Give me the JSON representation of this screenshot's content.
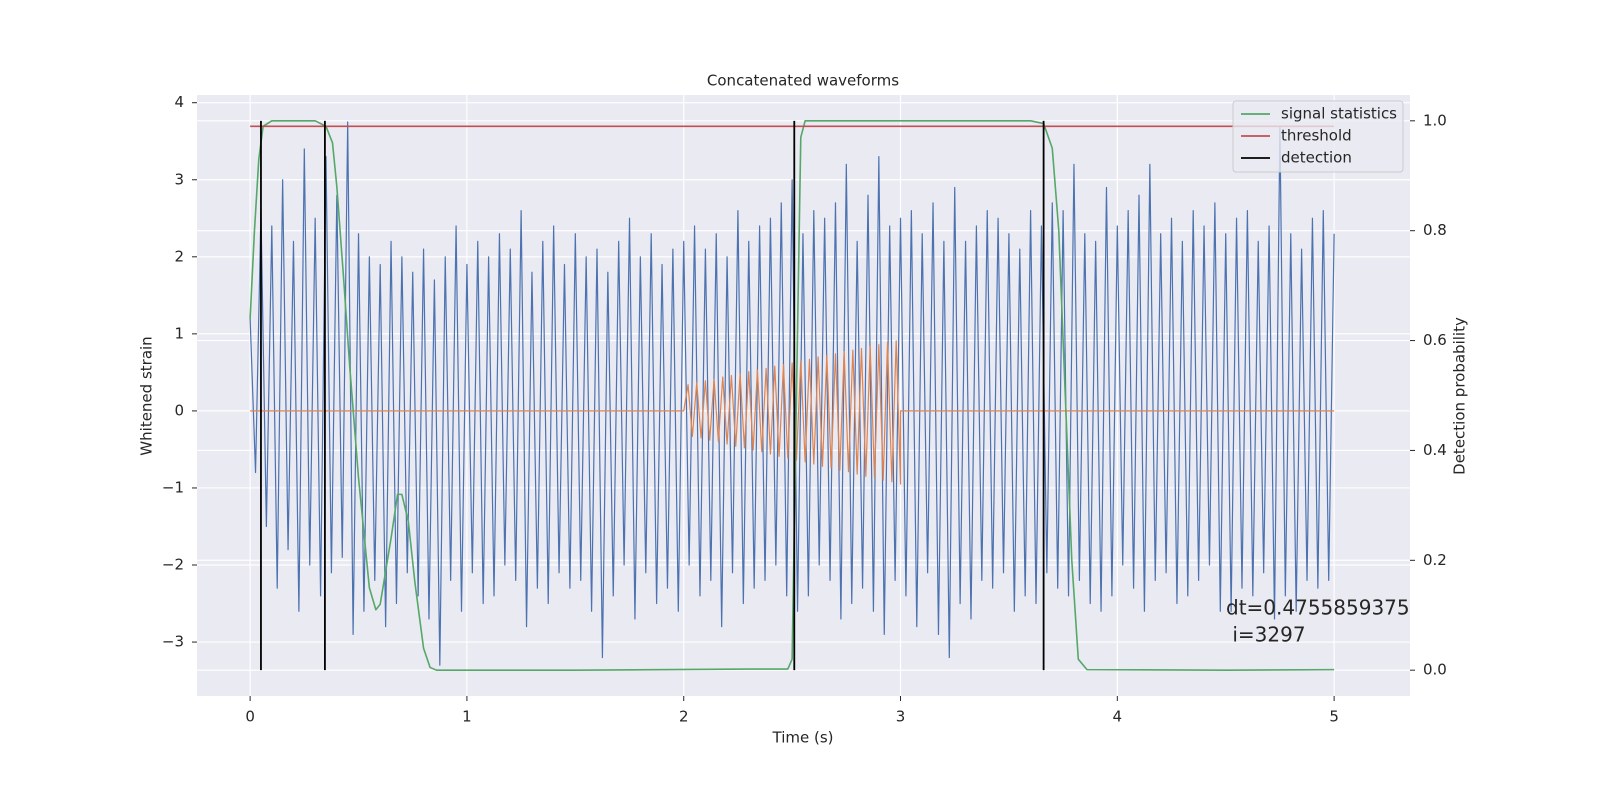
{
  "chart_data": {
    "type": "line",
    "title": "Concatenated waveforms",
    "xlabel": "Time (s)",
    "ylabel": "Whitened strain",
    "y2label": "Detection probability",
    "xlim": [
      -0.245,
      5.35
    ],
    "ylim": [
      -3.7,
      4.1
    ],
    "y2lim": [
      -0.047,
      1.047
    ],
    "xticks": [
      0,
      1,
      2,
      3,
      4,
      5
    ],
    "yticks": [
      {
        "value": -3,
        "label": "−3"
      },
      {
        "value": -2,
        "label": "−2"
      },
      {
        "value": -1,
        "label": "−1"
      },
      0,
      1,
      2,
      3,
      4
    ],
    "y2ticks": [
      {
        "value": 0,
        "label": "0.0"
      },
      0.2,
      0.4,
      0.6,
      0.8,
      {
        "value": 1,
        "label": "1.0"
      }
    ],
    "grid": true,
    "legend": "upper right",
    "annotation": [
      "dt=0.4755859375",
      " i=3297"
    ],
    "series": [
      {
        "color": "#4c72b0",
        "x": [
          0,
          0.025,
          0.05,
          0.075,
          0.1,
          0.125,
          0.15,
          0.175,
          0.2,
          0.225,
          0.25,
          0.275,
          0.3,
          0.325,
          0.35,
          0.375,
          0.4,
          0.425,
          0.45,
          0.475,
          0.5,
          0.525,
          0.55,
          0.575,
          0.6,
          0.625,
          0.65,
          0.675,
          0.7,
          0.725,
          0.75,
          0.775,
          0.8,
          0.825,
          0.85,
          0.875,
          0.9,
          0.925,
          0.95,
          0.975,
          1,
          1.025,
          1.05,
          1.075,
          1.1,
          1.125,
          1.15,
          1.175,
          1.2,
          1.225,
          1.25,
          1.275,
          1.3,
          1.325,
          1.35,
          1.375,
          1.4,
          1.425,
          1.45,
          1.475,
          1.5,
          1.525,
          1.55,
          1.575,
          1.6,
          1.625,
          1.65,
          1.675,
          1.7,
          1.725,
          1.75,
          1.775,
          1.8,
          1.825,
          1.85,
          1.875,
          1.9,
          1.925,
          1.95,
          1.975,
          2,
          2.025,
          2.05,
          2.075,
          2.1,
          2.125,
          2.15,
          2.175,
          2.2,
          2.225,
          2.25,
          2.275,
          2.3,
          2.325,
          2.35,
          2.375,
          2.4,
          2.425,
          2.45,
          2.475,
          2.5,
          2.525,
          2.55,
          2.575,
          2.6,
          2.625,
          2.65,
          2.675,
          2.7,
          2.725,
          2.75,
          2.775,
          2.8,
          2.825,
          2.85,
          2.875,
          2.9,
          2.925,
          2.95,
          2.975,
          3,
          3.025,
          3.05,
          3.075,
          3.1,
          3.125,
          3.15,
          3.175,
          3.2,
          3.225,
          3.25,
          3.275,
          3.3,
          3.325,
          3.35,
          3.375,
          3.4,
          3.425,
          3.45,
          3.475,
          3.5,
          3.525,
          3.55,
          3.575,
          3.6,
          3.625,
          3.65,
          3.675,
          3.7,
          3.725,
          3.75,
          3.775,
          3.8,
          3.825,
          3.85,
          3.875,
          3.9,
          3.925,
          3.95,
          3.975,
          4,
          4.025,
          4.05,
          4.075,
          4.1,
          4.125,
          4.15,
          4.175,
          4.2,
          4.225,
          4.25,
          4.275,
          4.3,
          4.325,
          4.35,
          4.375,
          4.4,
          4.425,
          4.45,
          4.475,
          4.5,
          4.525,
          4.55,
          4.575,
          4.6,
          4.625,
          4.65,
          4.675,
          4.7,
          4.725,
          4.75,
          4.775,
          4.8,
          4.825,
          4.85,
          4.875,
          4.9,
          4.925,
          4.95,
          4.975,
          5
        ],
        "values": [
          1.2,
          -0.8,
          2.6,
          -1.5,
          2.4,
          -2.3,
          3.0,
          -1.8,
          2.2,
          -2.6,
          3.4,
          -2.0,
          2.5,
          -2.4,
          3.3,
          -2.1,
          2.8,
          -1.9,
          3.75,
          -2.9,
          2.3,
          -2.6,
          2.0,
          -2.2,
          1.9,
          -2.8,
          2.2,
          -2.5,
          2.0,
          -2.1,
          1.8,
          -2.4,
          2.1,
          -2.7,
          1.7,
          -3.3,
          2.0,
          -2.2,
          2.4,
          -2.6,
          1.9,
          -2.1,
          2.2,
          -2.5,
          2.0,
          -2.4,
          2.3,
          -2.0,
          2.1,
          -2.2,
          2.6,
          -2.8,
          1.8,
          -2.3,
          2.2,
          -2.5,
          2.4,
          -2.1,
          1.9,
          -2.3,
          2.3,
          -2.2,
          2.0,
          -2.6,
          2.1,
          -3.2,
          1.8,
          -2.4,
          2.2,
          -2.0,
          2.5,
          -2.7,
          2.0,
          -2.1,
          2.3,
          -2.5,
          1.9,
          -2.3,
          2.1,
          -2.6,
          2.2,
          -2.0,
          2.4,
          -2.4,
          2.1,
          -2.2,
          2.3,
          -2.8,
          2.0,
          -2.1,
          2.6,
          -2.5,
          2.2,
          -2.3,
          2.4,
          -2.2,
          2.5,
          -2.0,
          2.7,
          -2.4,
          3.0,
          -2.6,
          2.3,
          -2.4,
          2.6,
          -2.0,
          2.5,
          -2.2,
          2.7,
          -2.7,
          3.2,
          -2.5,
          2.2,
          -2.3,
          2.8,
          -2.6,
          3.3,
          -2.9,
          2.4,
          -2.2,
          2.5,
          -2.4,
          2.6,
          -2.8,
          2.3,
          -2.1,
          2.7,
          -2.9,
          2.2,
          -3.2,
          2.9,
          -2.5,
          2.2,
          -2.7,
          2.4,
          -2.2,
          2.6,
          -2.3,
          2.5,
          -2.1,
          2.3,
          -2.6,
          2.1,
          -2.4,
          2.6,
          -2.5,
          2.4,
          -2.1,
          2.7,
          -2.3,
          2.6,
          -2.4,
          3.2,
          -2.2,
          2.3,
          -2.5,
          2.2,
          -2.6,
          2.9,
          -2.4,
          2.4,
          -2.0,
          2.6,
          -2.3,
          2.8,
          -2.6,
          3.2,
          -2.2,
          2.3,
          -2.1,
          2.5,
          -2.5,
          2.2,
          -2.4,
          2.6,
          -2.2,
          2.4,
          -2.0,
          2.7,
          -2.6,
          2.3,
          -2.6,
          2.5,
          -2.3,
          2.6,
          -2.4,
          2.2,
          -2.1,
          2.4,
          -2.7,
          3.7,
          -2.4,
          2.3,
          -2.6,
          2.1,
          -2.2,
          2.5,
          -2.3,
          2.6,
          -2.2,
          2.3
        ]
      },
      {
        "color": "#dd8452",
        "x": [
          0,
          2,
          2.02,
          2.04,
          2.06,
          2.08,
          2.1,
          2.12,
          2.14,
          2.16,
          2.18,
          2.2,
          2.22,
          2.24,
          2.26,
          2.28,
          2.3,
          2.32,
          2.34,
          2.36,
          2.38,
          2.4,
          2.42,
          2.44,
          2.46,
          2.48,
          2.5,
          2.52,
          2.54,
          2.56,
          2.58,
          2.6,
          2.62,
          2.64,
          2.66,
          2.68,
          2.7,
          2.72,
          2.74,
          2.76,
          2.78,
          2.8,
          2.82,
          2.84,
          2.86,
          2.88,
          2.9,
          2.92,
          2.94,
          2.96,
          2.98,
          3,
          3,
          5
        ],
        "values": [
          0,
          0,
          0.34,
          -0.33,
          0.37,
          -0.35,
          0.39,
          -0.38,
          0.41,
          -0.4,
          0.44,
          -0.43,
          0.46,
          -0.46,
          0.48,
          -0.48,
          0.51,
          -0.51,
          0.53,
          -0.53,
          0.55,
          -0.56,
          0.58,
          -0.59,
          0.6,
          -0.61,
          0.62,
          -0.64,
          0.65,
          -0.66,
          0.67,
          -0.69,
          0.7,
          -0.72,
          0.72,
          -0.74,
          0.74,
          -0.77,
          0.77,
          -0.79,
          0.79,
          -0.82,
          0.81,
          -0.85,
          0.84,
          -0.87,
          0.86,
          -0.9,
          0.89,
          -0.92,
          0.91,
          -0.95,
          0,
          0
        ]
      },
      {
        "name": "signal statistics",
        "color": "#55a868",
        "axis": "y2",
        "x": [
          0,
          0.02,
          0.04,
          0.06,
          0.1,
          0.3,
          0.35,
          0.38,
          0.4,
          0.43,
          0.46,
          0.5,
          0.55,
          0.58,
          0.6,
          0.65,
          0.68,
          0.7,
          0.73,
          0.76,
          0.8,
          0.83,
          0.86,
          1.5,
          2.3,
          2.48,
          2.5,
          2.52,
          2.54,
          2.56,
          3.6,
          3.66,
          3.7,
          3.73,
          3.76,
          3.79,
          3.82,
          3.86,
          4.5,
          5
        ],
        "values": [
          0.64,
          0.8,
          0.93,
          0.99,
          1,
          1,
          0.99,
          0.96,
          0.88,
          0.72,
          0.55,
          0.35,
          0.15,
          0.11,
          0.12,
          0.24,
          0.32,
          0.32,
          0.27,
          0.16,
          0.04,
          0.005,
          0,
          0,
          0.002,
          0.002,
          0.02,
          0.5,
          0.97,
          1,
          1,
          0.995,
          0.95,
          0.8,
          0.5,
          0.2,
          0.02,
          0.001,
          0,
          0.001
        ]
      },
      {
        "name": "threshold",
        "color": "#c44e52",
        "axis": "y2",
        "x": [
          0,
          5
        ],
        "values": [
          0.99,
          0.99
        ]
      },
      {
        "name": "detection",
        "color": "#000000",
        "axis": "y2",
        "kind": "vlines",
        "x": [
          0.05,
          0.345,
          2.51,
          3.66
        ],
        "ymin": 0,
        "ymax": 1
      }
    ]
  }
}
